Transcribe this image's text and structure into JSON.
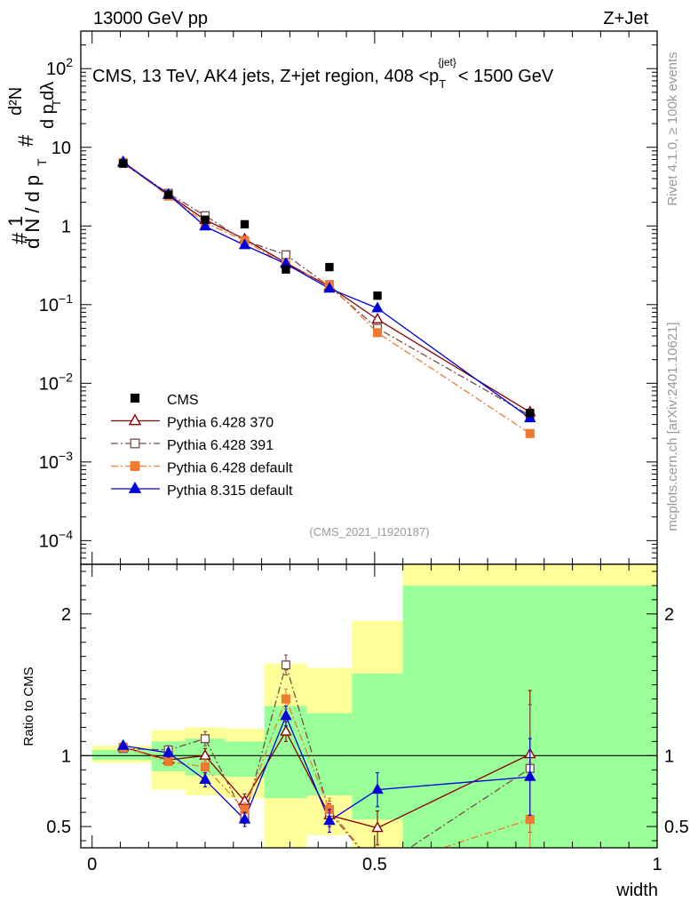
{
  "header": {
    "left": "13000 GeV pp",
    "right": "Z+Jet"
  },
  "side_labels": {
    "top": "Rivet 4.1.0, ≥ 100k events",
    "bottom": "mcplots.cern.ch [arXiv:2401.10621]"
  },
  "chart_data": {
    "type": "line",
    "title": "CMS, 13 TeV, AK4 jets, Z+jet region, 408 <p_T^{jet}< 1500 GeV",
    "title_parts": {
      "main": "CMS, 13 TeV, AK4 jets, Z+jet region, 408 <p",
      "sub": "T",
      "sup": "{jet}",
      "tail": "< 1500 GeV"
    },
    "analysis_id": "(CMS_2021_I1920187)",
    "xlabel": "width",
    "ylabel_upper": {
      "numer": "1",
      "denom": "d N / d p",
      "denom_sub": "T",
      "numer2": "d²N",
      "denom2": "d p",
      "denom2_sub": "T",
      "denom2_tail": " dλ",
      "hash": "#"
    },
    "ylabel_lower": "Ratio to CMS",
    "xlim": [
      -0.02,
      1.0
    ],
    "upper": {
      "yscale": "log",
      "ylim": [
        5e-05,
        300
      ],
      "yticks": [
        {
          "value": 0.0001,
          "base": "10",
          "exp": "−4"
        },
        {
          "value": 0.001,
          "base": "10",
          "exp": "−3"
        },
        {
          "value": 0.01,
          "base": "10",
          "exp": "−2"
        },
        {
          "value": 0.1,
          "base": "10",
          "exp": "−1"
        },
        {
          "value": 1,
          "base": "1",
          "exp": ""
        },
        {
          "value": 10,
          "base": "10",
          "exp": ""
        },
        {
          "value": 100,
          "base": "10",
          "exp": "2"
        }
      ]
    },
    "lower": {
      "ylim": [
        0.35,
        2.35
      ],
      "yticks": [
        {
          "value": 0.5,
          "label": "0.5"
        },
        {
          "value": 1,
          "label": "1"
        },
        {
          "value": 2,
          "label": "2"
        }
      ],
      "reference": 1
    },
    "xticks": [
      {
        "value": 0,
        "label": "0"
      },
      {
        "value": 0.5,
        "label": "0.5"
      },
      {
        "value": 1,
        "label": "1"
      }
    ],
    "bins": [
      {
        "lo": 0.0,
        "hi": 0.105,
        "center": 0.055
      },
      {
        "lo": 0.105,
        "hi": 0.165,
        "center": 0.135
      },
      {
        "lo": 0.165,
        "hi": 0.235,
        "center": 0.2
      },
      {
        "lo": 0.235,
        "hi": 0.305,
        "center": 0.27
      },
      {
        "lo": 0.305,
        "hi": 0.38,
        "center": 0.343
      },
      {
        "lo": 0.38,
        "hi": 0.46,
        "center": 0.42
      },
      {
        "lo": 0.46,
        "hi": 0.55,
        "center": 0.505
      },
      {
        "lo": 0.55,
        "hi": 1.0,
        "center": 0.775
      }
    ],
    "cms": {
      "name": "CMS",
      "values": [
        6.2,
        2.5,
        1.2,
        1.05,
        0.28,
        0.3,
        0.13,
        0.0042
      ]
    },
    "bands": {
      "yellow": [
        [
          0.95,
          1.07
        ],
        [
          0.76,
          1.18
        ],
        [
          0.72,
          1.2
        ],
        [
          0.7,
          1.19
        ],
        [
          0.3,
          1.65
        ],
        [
          0.44,
          1.62
        ],
        [
          0.3,
          1.95
        ],
        [
          0.3,
          2.35
        ]
      ],
      "green": [
        [
          0.97,
          1.04
        ],
        [
          0.89,
          1.1
        ],
        [
          0.86,
          1.12
        ],
        [
          0.85,
          1.1
        ],
        [
          0.7,
          1.35
        ],
        [
          0.72,
          1.3
        ],
        [
          0.55,
          1.58
        ],
        [
          0.3,
          2.2
        ]
      ]
    },
    "series": [
      {
        "name": "Pythia 6.428 370",
        "color": "#8b0000",
        "dash": "",
        "marker": "triangle-open",
        "values": [
          6.3,
          2.5,
          1.2,
          0.68,
          0.34,
          0.17,
          0.065,
          0.0043
        ],
        "ratio": [
          1.06,
          0.97,
          1.0,
          0.68,
          1.17,
          0.58,
          0.49,
          1.01
        ],
        "ratio_err": [
          0.02,
          0.03,
          0.05,
          0.05,
          0.07,
          0.08,
          0.12,
          0.45
        ]
      },
      {
        "name": "Pythia 6.428 391",
        "color": "#7a4a4a",
        "dash": "8,3,2,3",
        "marker": "square-open",
        "values": [
          6.3,
          2.6,
          1.35,
          0.65,
          0.43,
          0.17,
          0.05,
          0.0039
        ],
        "ratio": [
          1.05,
          1.04,
          1.12,
          0.57,
          1.64,
          0.6,
          0.2,
          0.91
        ],
        "ratio_err": [
          0.02,
          0.03,
          0.05,
          0.05,
          0.07,
          0.08,
          0.12,
          0.45
        ]
      },
      {
        "name": "Pythia 6.428 default",
        "color": "#f07830",
        "dash": "8,3,2,3",
        "marker": "square-filled",
        "values": [
          6.4,
          2.4,
          1.1,
          0.65,
          0.32,
          0.18,
          0.044,
          0.0023
        ],
        "ratio": [
          1.06,
          0.96,
          0.92,
          0.62,
          1.4,
          0.62,
          0.2,
          0.55
        ],
        "ratio_err": [
          0.02,
          0.03,
          0.05,
          0.05,
          0.07,
          0.08,
          0.12,
          0.4
        ]
      },
      {
        "name": "Pythia 8.315 default",
        "color": "#0000dd",
        "dash": "",
        "marker": "triangle-filled",
        "values": [
          6.5,
          2.5,
          0.99,
          0.57,
          0.33,
          0.16,
          0.09,
          0.0036
        ],
        "ratio": [
          1.07,
          1.02,
          0.83,
          0.55,
          1.28,
          0.54,
          0.76,
          0.85
        ],
        "ratio_err": [
          0.02,
          0.03,
          0.05,
          0.05,
          0.07,
          0.08,
          0.12,
          0.27
        ]
      }
    ],
    "legend_position": "lower-left"
  }
}
